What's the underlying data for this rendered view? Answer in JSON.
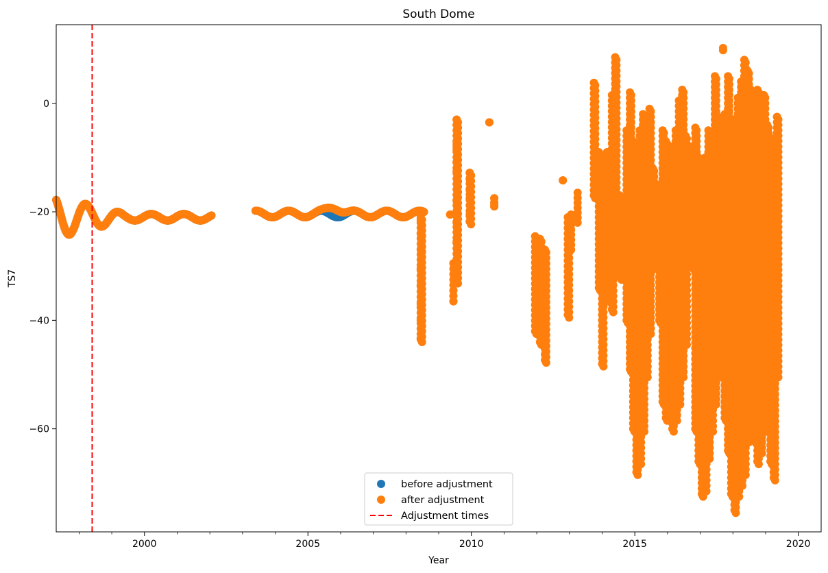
{
  "chart_data": {
    "type": "scatter",
    "title": "South Dome",
    "xlabel": "Year",
    "ylabel": "TS7",
    "xlim": [
      1997.3,
      2020.7
    ],
    "ylim": [
      -79,
      14.5
    ],
    "x_ticks": [
      2000,
      2005,
      2010,
      2015,
      2020
    ],
    "x_tick_labels": [
      "2000",
      "2005",
      "2010",
      "2015",
      "2020"
    ],
    "y_ticks": [
      0,
      -20,
      -40,
      -60
    ],
    "y_tick_labels": [
      "0",
      "−20",
      "−40",
      "−60"
    ],
    "minor_x_step": 1,
    "grid": false,
    "legend_position": "lower-center",
    "series": [
      {
        "name": "before adjustment",
        "color": "#1f77b4",
        "marker": "circle"
      },
      {
        "name": "after adjustment",
        "color": "#ff7f0e",
        "marker": "circle"
      }
    ],
    "adjustment_line": {
      "name": "Adjustment times",
      "color": "#ff0000",
      "x": 1998.4
    },
    "oscillation_segments": [
      {
        "x0": 1997.3,
        "x1": 2002.05,
        "base": -21.0,
        "amp0": 3.8,
        "amp1": 0.6,
        "period": 1.0,
        "phase": 2.15
      },
      {
        "x0": 2003.4,
        "x1": 2008.55,
        "base": -20.4,
        "amp0": 0.6,
        "amp1": 0.6,
        "period": 1.0,
        "phase": 1.5
      }
    ],
    "vertical_columns": [
      {
        "x": 2008.45,
        "ymin": -43.5,
        "ymax": -21,
        "pts": [
          -21.5,
          -24,
          -27,
          -30.5,
          -33.5,
          -37,
          -40,
          -43.3
        ]
      },
      {
        "x": 2009.35,
        "ymin": -20.5,
        "ymax": -20.5
      },
      {
        "x": 2009.45,
        "ymin": -36.5,
        "ymax": -29.5,
        "pts": [
          -29.5,
          -36.5
        ]
      },
      {
        "x": 2009.55,
        "ymin": -32.7,
        "ymax": -3,
        "pts": [
          -3,
          -4,
          -7.5,
          -8.5,
          -10.8,
          -12.5,
          -18,
          -22,
          -25.5,
          -32.7
        ]
      },
      {
        "x": 2009.95,
        "ymin": -21.8,
        "ymax": -12.8,
        "pts": [
          -12.8,
          -14,
          -16,
          -17.5,
          -20.5,
          -21.8
        ]
      },
      {
        "x": 2010.55,
        "ymin": -3.5,
        "ymax": -3.5
      },
      {
        "x": 2010.7,
        "ymin": -19,
        "ymax": -17.5,
        "pts": [
          -17.5,
          -18.5,
          -19
        ]
      },
      {
        "x": 2011.95,
        "ymin": -42,
        "ymax": -24.5
      },
      {
        "x": 2012.1,
        "ymin": -44,
        "ymax": -25
      },
      {
        "x": 2012.25,
        "ymin": -47.3,
        "ymax": -27
      },
      {
        "x": 2012.8,
        "ymin": -14.2,
        "ymax": -14.2
      },
      {
        "x": 2012.95,
        "ymin": -39,
        "ymax": -21
      },
      {
        "x": 2013.05,
        "ymin": -27,
        "ymax": -20.5
      },
      {
        "x": 2013.25,
        "ymin": -22,
        "ymax": -16.5
      },
      {
        "x": 2013.75,
        "ymin": -17,
        "ymax": 3.8
      },
      {
        "x": 2013.9,
        "ymin": -34,
        "ymax": -9
      },
      {
        "x": 2014.0,
        "ymin": -48,
        "ymax": -10
      },
      {
        "x": 2014.15,
        "ymin": -36,
        "ymax": -9
      },
      {
        "x": 2014.3,
        "ymin": -38,
        "ymax": 1.5
      },
      {
        "x": 2014.4,
        "ymin": -20,
        "ymax": 8.5
      },
      {
        "x": 2014.55,
        "ymin": -32,
        "ymax": -17
      },
      {
        "x": 2014.75,
        "ymin": -40,
        "ymax": -5
      },
      {
        "x": 2014.85,
        "ymin": -49,
        "ymax": 2
      },
      {
        "x": 2014.95,
        "ymin": -60,
        "ymax": -7
      },
      {
        "x": 2015.05,
        "ymin": -68,
        "ymax": -9
      },
      {
        "x": 2015.15,
        "ymin": -66,
        "ymax": -5
      },
      {
        "x": 2015.25,
        "ymin": -60,
        "ymax": -2
      },
      {
        "x": 2015.35,
        "ymin": -50,
        "ymax": -5
      },
      {
        "x": 2015.45,
        "ymin": -42,
        "ymax": -1
      },
      {
        "x": 2015.55,
        "ymin": -30,
        "ymax": -12
      },
      {
        "x": 2015.75,
        "ymin": -40,
        "ymax": -15
      },
      {
        "x": 2015.85,
        "ymin": -55,
        "ymax": -5
      },
      {
        "x": 2015.95,
        "ymin": -58,
        "ymax": -7
      },
      {
        "x": 2016.05,
        "ymin": -57,
        "ymax": -9
      },
      {
        "x": 2016.15,
        "ymin": -60,
        "ymax": -8
      },
      {
        "x": 2016.25,
        "ymin": -58,
        "ymax": -5
      },
      {
        "x": 2016.35,
        "ymin": -55,
        "ymax": 0.5
      },
      {
        "x": 2016.45,
        "ymin": -50,
        "ymax": 2.5
      },
      {
        "x": 2016.55,
        "ymin": -44,
        "ymax": -6
      },
      {
        "x": 2016.75,
        "ymin": -30,
        "ymax": -8
      },
      {
        "x": 2016.85,
        "ymin": -60,
        "ymax": -4.5
      },
      {
        "x": 2016.95,
        "ymin": -66,
        "ymax": -10
      },
      {
        "x": 2017.05,
        "ymin": -72,
        "ymax": -12
      },
      {
        "x": 2017.15,
        "ymin": -71,
        "ymax": -10
      },
      {
        "x": 2017.25,
        "ymin": -65,
        "ymax": -5
      },
      {
        "x": 2017.35,
        "ymin": -60,
        "ymax": -9
      },
      {
        "x": 2017.45,
        "ymin": -55,
        "ymax": 5
      },
      {
        "x": 2017.55,
        "ymin": -50,
        "ymax": -2.5
      },
      {
        "x": 2017.65,
        "ymin": -45,
        "ymax": -3
      },
      {
        "x": 2017.7,
        "ymin": 9.8,
        "ymax": 10.2
      },
      {
        "x": 2017.75,
        "ymin": -58,
        "ymax": -2
      },
      {
        "x": 2017.85,
        "ymin": -64,
        "ymax": 5
      },
      {
        "x": 2017.95,
        "ymin": -72,
        "ymax": -3
      },
      {
        "x": 2018.05,
        "ymin": -75,
        "ymax": -3
      },
      {
        "x": 2018.15,
        "ymin": -72,
        "ymax": 1
      },
      {
        "x": 2018.25,
        "ymin": -70,
        "ymax": 4
      },
      {
        "x": 2018.35,
        "ymin": -68,
        "ymax": 8
      },
      {
        "x": 2018.45,
        "ymin": -62,
        "ymax": 6
      },
      {
        "x": 2018.55,
        "ymin": -55,
        "ymax": 2.5
      },
      {
        "x": 2018.65,
        "ymin": -62,
        "ymax": -1
      },
      {
        "x": 2018.75,
        "ymin": -66,
        "ymax": 2.5
      },
      {
        "x": 2018.85,
        "ymin": -64,
        "ymax": -2
      },
      {
        "x": 2018.95,
        "ymin": -60,
        "ymax": 1.5
      },
      {
        "x": 2019.05,
        "ymin": -58,
        "ymax": -4
      },
      {
        "x": 2019.15,
        "ymin": -66,
        "ymax": -8
      },
      {
        "x": 2019.25,
        "ymin": -69,
        "ymax": -6.5
      },
      {
        "x": 2019.35,
        "ymin": -50,
        "ymax": -2.5
      }
    ]
  }
}
